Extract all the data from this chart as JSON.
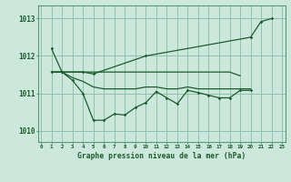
{
  "background_color": "#cce8dd",
  "grid_color": "#88bbaa",
  "line_color": "#1a5c2a",
  "spine_color": "#5a9a7a",
  "title": "Graphe pression niveau de la mer (hPa)",
  "ylim": [
    1009.7,
    1013.35
  ],
  "yticks": [
    1010,
    1011,
    1012,
    1013
  ],
  "xlim": [
    -0.3,
    23.3
  ],
  "s1_x": [
    1,
    2,
    4,
    5,
    10,
    20,
    21,
    22
  ],
  "s1_y": [
    1012.2,
    1011.57,
    1011.57,
    1011.52,
    1012.0,
    1012.5,
    1012.92,
    1013.0
  ],
  "s2_x": [
    1,
    2,
    3,
    4,
    5,
    6,
    7,
    8,
    9,
    10,
    11,
    12,
    13,
    14,
    15,
    16,
    17,
    18,
    19,
    20
  ],
  "s2_y": [
    1011.57,
    1011.57,
    1011.35,
    1011.0,
    1010.28,
    1010.28,
    1010.45,
    1010.42,
    1010.62,
    1010.75,
    1011.05,
    1010.88,
    1010.72,
    1011.08,
    1011.02,
    1010.95,
    1010.88,
    1010.88,
    1011.08,
    1011.08
  ],
  "s3_x": [
    1,
    2,
    3,
    4,
    5,
    6,
    7,
    8,
    9,
    10,
    11,
    12,
    13,
    14,
    15,
    16,
    17,
    18,
    19
  ],
  "s3_y": [
    1011.57,
    1011.57,
    1011.57,
    1011.57,
    1011.57,
    1011.57,
    1011.57,
    1011.57,
    1011.57,
    1011.57,
    1011.57,
    1011.57,
    1011.57,
    1011.57,
    1011.57,
    1011.57,
    1011.57,
    1011.57,
    1011.47
  ],
  "s4_x": [
    1,
    2,
    3,
    4,
    5,
    6,
    7,
    8,
    9,
    10,
    11,
    12,
    13,
    14,
    15,
    16,
    17,
    18,
    19,
    20
  ],
  "s4_y": [
    1011.57,
    1011.57,
    1011.42,
    1011.32,
    1011.17,
    1011.12,
    1011.12,
    1011.12,
    1011.12,
    1011.17,
    1011.17,
    1011.12,
    1011.12,
    1011.17,
    1011.12,
    1011.12,
    1011.12,
    1011.12,
    1011.12,
    1011.12
  ]
}
